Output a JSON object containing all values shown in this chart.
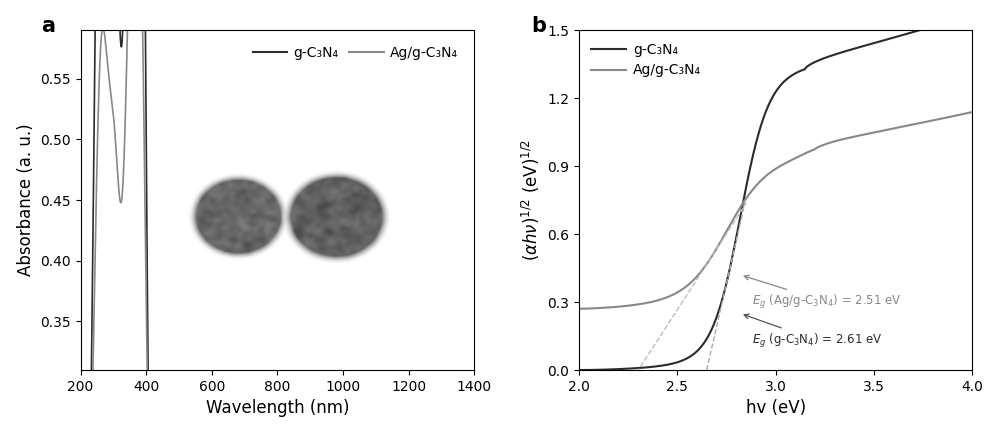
{
  "panel_a": {
    "title_label": "a",
    "xlabel": "Wavelength (nm)",
    "ylabel": "Absorbance (a. u.)",
    "xlim": [
      200,
      1400
    ],
    "xticks": [
      200,
      400,
      600,
      800,
      1000,
      1200,
      1400
    ],
    "legend_labels": [
      "g-C₃N₄",
      "Ag/g-C₃N₄"
    ],
    "color_dark": "#2b2b2b",
    "color_light": "#888888"
  },
  "panel_b": {
    "title_label": "b",
    "xlabel": "hv (eV)",
    "xlim": [
      2.0,
      4.0
    ],
    "ylim": [
      0.0,
      1.5
    ],
    "xticks": [
      2.0,
      2.5,
      3.0,
      3.5,
      4.0
    ],
    "yticks": [
      0.0,
      0.3,
      0.6,
      0.9,
      1.2,
      1.5
    ],
    "legend_labels": [
      "g-C₃N₄",
      "Ag/g-C₃N₄"
    ],
    "color_dark": "#2b2b2b",
    "color_light": "#888888",
    "Eg_dark": 2.61,
    "Eg_light": 2.51
  },
  "figure": {
    "bg_color": "#ffffff",
    "label_fontsize": 12,
    "tick_fontsize": 10,
    "legend_fontsize": 10
  }
}
